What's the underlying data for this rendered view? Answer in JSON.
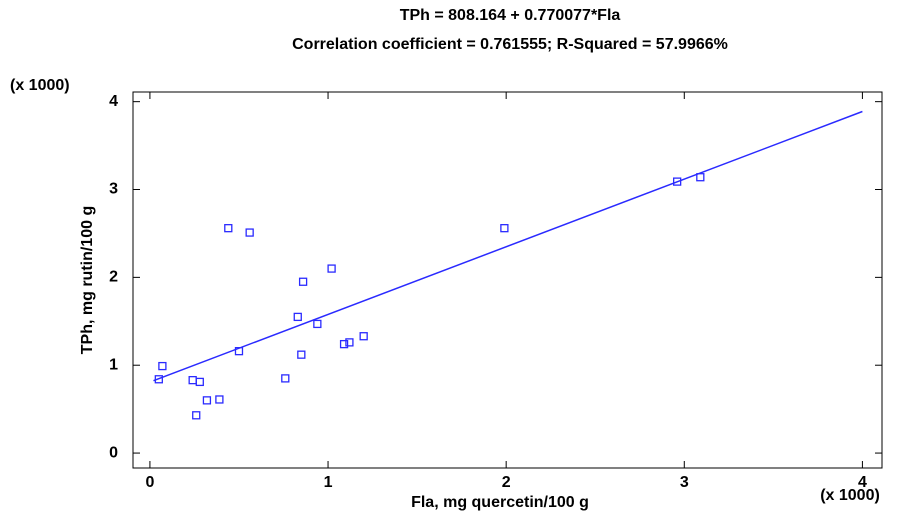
{
  "chart_data": {
    "type": "scatter",
    "title": "TPh = 808.164 + 0.770077*Fla",
    "subtitle": "Correlation coefficient = 0.761555; R-Squared = 57.9966%",
    "x_label": "Fla, mg quercetin/100 g",
    "y_label": "TPh, mg rutin/100 g",
    "x_multiplier": "(x 1000)",
    "y_multiplier": "(x 1000)",
    "color": "#2a2aff",
    "x": [
      0.05,
      0.07,
      0.24,
      0.28,
      0.26,
      0.32,
      0.39,
      0.44,
      0.56,
      0.5,
      0.76,
      0.83,
      0.86,
      1.02,
      0.85,
      0.94,
      1.09,
      1.12,
      1.2,
      1.99,
      2.96,
      3.09
    ],
    "values": [
      0.84,
      0.99,
      0.83,
      0.81,
      0.43,
      0.6,
      0.61,
      2.56,
      2.51,
      1.16,
      0.85,
      1.55,
      1.95,
      2.1,
      1.12,
      1.47,
      1.24,
      1.26,
      1.33,
      2.56,
      3.09,
      3.14
    ],
    "fit": {
      "x": [
        0.02,
        4.0
      ],
      "values": [
        0.824,
        3.888
      ]
    },
    "xlim": [
      -0.095,
      4.11
    ],
    "ylim": [
      -0.17,
      4.11
    ],
    "xticks": [
      0,
      1,
      2,
      3,
      4
    ],
    "yticks": [
      0,
      1,
      2,
      3,
      4
    ]
  }
}
